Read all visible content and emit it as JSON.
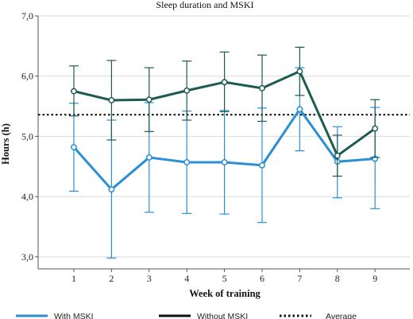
{
  "chart_data": {
    "type": "line",
    "title": "Sleep duration and MSKI",
    "xlabel": "Week of training",
    "ylabel": "Hours (h)",
    "categories": [
      "1",
      "2",
      "3",
      "4",
      "5",
      "6",
      "7",
      "8",
      "9"
    ],
    "ylim": [
      2.8,
      7.0
    ],
    "yticks": [
      "3,0",
      "4,0",
      "5,0",
      "6,0",
      "7,0"
    ],
    "ytick_values": [
      3.0,
      4.0,
      5.0,
      6.0,
      7.0
    ],
    "grid": "horizontal",
    "legend_position": "bottom",
    "series": [
      {
        "name": "With MSKI",
        "color": "#2a8fd4",
        "values": [
          4.82,
          4.12,
          4.65,
          4.57,
          4.57,
          4.52,
          5.45,
          4.58,
          4.63
        ],
        "lower": [
          4.09,
          2.98,
          3.74,
          3.72,
          3.71,
          3.57,
          4.76,
          3.98,
          3.8
        ],
        "upper": [
          5.55,
          5.27,
          5.56,
          5.42,
          5.43,
          5.47,
          6.14,
          5.16,
          5.48
        ]
      },
      {
        "name": "Without MSKI",
        "color": "#1c5b4f",
        "values": [
          5.75,
          5.6,
          5.61,
          5.76,
          5.9,
          5.8,
          6.08,
          4.68,
          5.13
        ],
        "lower": [
          5.34,
          4.94,
          5.08,
          5.27,
          5.41,
          5.25,
          5.68,
          4.34,
          4.65
        ],
        "upper": [
          6.17,
          6.26,
          6.14,
          6.25,
          6.4,
          6.35,
          6.48,
          5.02,
          5.61
        ]
      }
    ],
    "reference_lines": [
      {
        "name": "Average",
        "value": 5.36,
        "style": "dotted",
        "color": "#111111"
      }
    ],
    "legend": [
      {
        "label": "With MSKI",
        "style": "solid",
        "color": "#2a8fd4"
      },
      {
        "label": "Without MSKI",
        "style": "solid",
        "color": "#111111"
      },
      {
        "label": "Average",
        "style": "dotted",
        "color": "#111111"
      }
    ]
  }
}
